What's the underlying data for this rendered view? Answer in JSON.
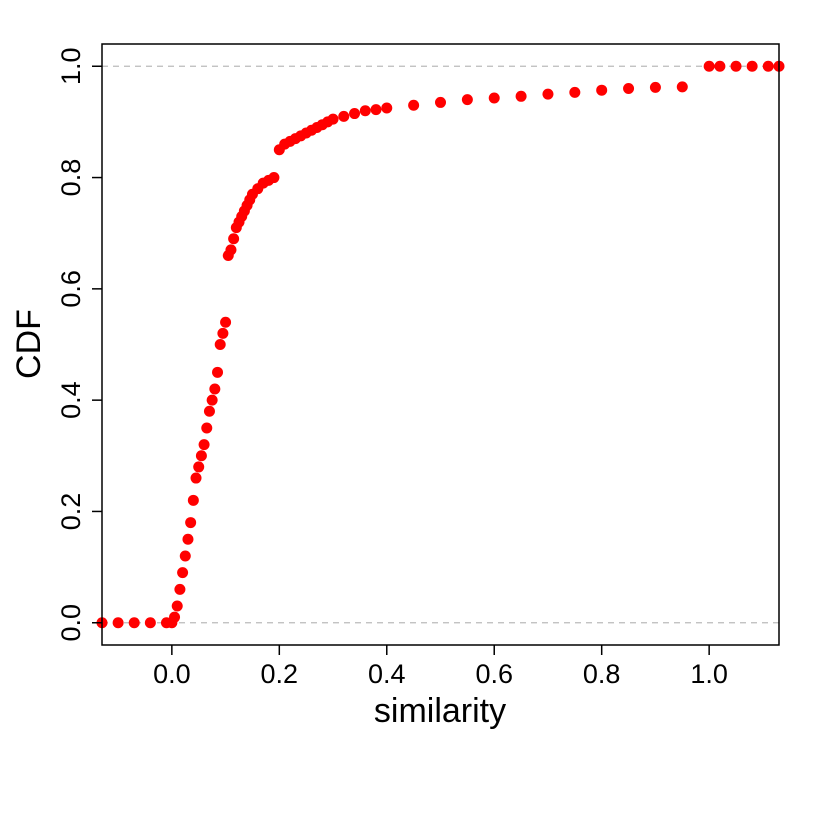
{
  "chart_data": {
    "type": "scatter",
    "title": "",
    "xlabel": "similarity",
    "ylabel": "CDF",
    "xlim": [
      -0.13,
      1.13
    ],
    "ylim": [
      -0.04,
      1.04
    ],
    "x_ticks": [
      0.0,
      0.2,
      0.4,
      0.6,
      0.8,
      1.0
    ],
    "x_tick_labels": [
      "0.0",
      "0.2",
      "0.4",
      "0.6",
      "0.8",
      "1.0"
    ],
    "y_ticks": [
      0.0,
      0.2,
      0.4,
      0.6,
      0.8,
      1.0
    ],
    "y_tick_labels": [
      "0.0",
      "0.2",
      "0.4",
      "0.6",
      "0.8",
      "1.0"
    ],
    "reference_lines": [
      0,
      1
    ],
    "grid": false,
    "legend": "none",
    "point_color": "#ff0000",
    "reference_line_color": "#bbbbbb",
    "series": [
      {
        "x": [
          -0.13,
          -0.1,
          -0.07,
          -0.04,
          -0.01,
          0.0,
          0.005,
          0.01,
          0.015,
          0.02,
          0.025,
          0.03,
          0.035,
          0.04,
          0.045,
          0.05,
          0.055,
          0.06,
          0.065,
          0.07,
          0.075,
          0.08,
          0.085,
          0.09,
          0.095,
          0.1,
          0.105,
          0.11,
          0.115,
          0.12,
          0.125,
          0.13,
          0.135,
          0.14,
          0.145,
          0.15,
          0.16,
          0.17,
          0.18,
          0.19,
          0.2,
          0.21,
          0.22,
          0.23,
          0.24,
          0.25,
          0.26,
          0.27,
          0.28,
          0.29,
          0.3,
          0.32,
          0.34,
          0.36,
          0.38,
          0.4,
          0.45,
          0.5,
          0.55,
          0.6,
          0.65,
          0.7,
          0.75,
          0.8,
          0.85,
          0.9,
          0.95,
          1.0,
          1.02,
          1.05,
          1.08,
          1.11,
          1.13
        ],
        "y": [
          0.0,
          0.0,
          0.0,
          0.0,
          0.0,
          0.0,
          0.01,
          0.03,
          0.06,
          0.09,
          0.12,
          0.15,
          0.18,
          0.22,
          0.26,
          0.28,
          0.3,
          0.32,
          0.35,
          0.38,
          0.4,
          0.42,
          0.45,
          0.5,
          0.52,
          0.54,
          0.66,
          0.67,
          0.69,
          0.71,
          0.72,
          0.73,
          0.74,
          0.75,
          0.76,
          0.77,
          0.78,
          0.79,
          0.795,
          0.8,
          0.85,
          0.86,
          0.865,
          0.87,
          0.875,
          0.88,
          0.885,
          0.89,
          0.895,
          0.9,
          0.905,
          0.91,
          0.915,
          0.92,
          0.922,
          0.925,
          0.93,
          0.935,
          0.94,
          0.943,
          0.946,
          0.95,
          0.953,
          0.957,
          0.96,
          0.962,
          0.963,
          1.0,
          1.0,
          1.0,
          1.0,
          1.0,
          1.0
        ]
      }
    ]
  }
}
